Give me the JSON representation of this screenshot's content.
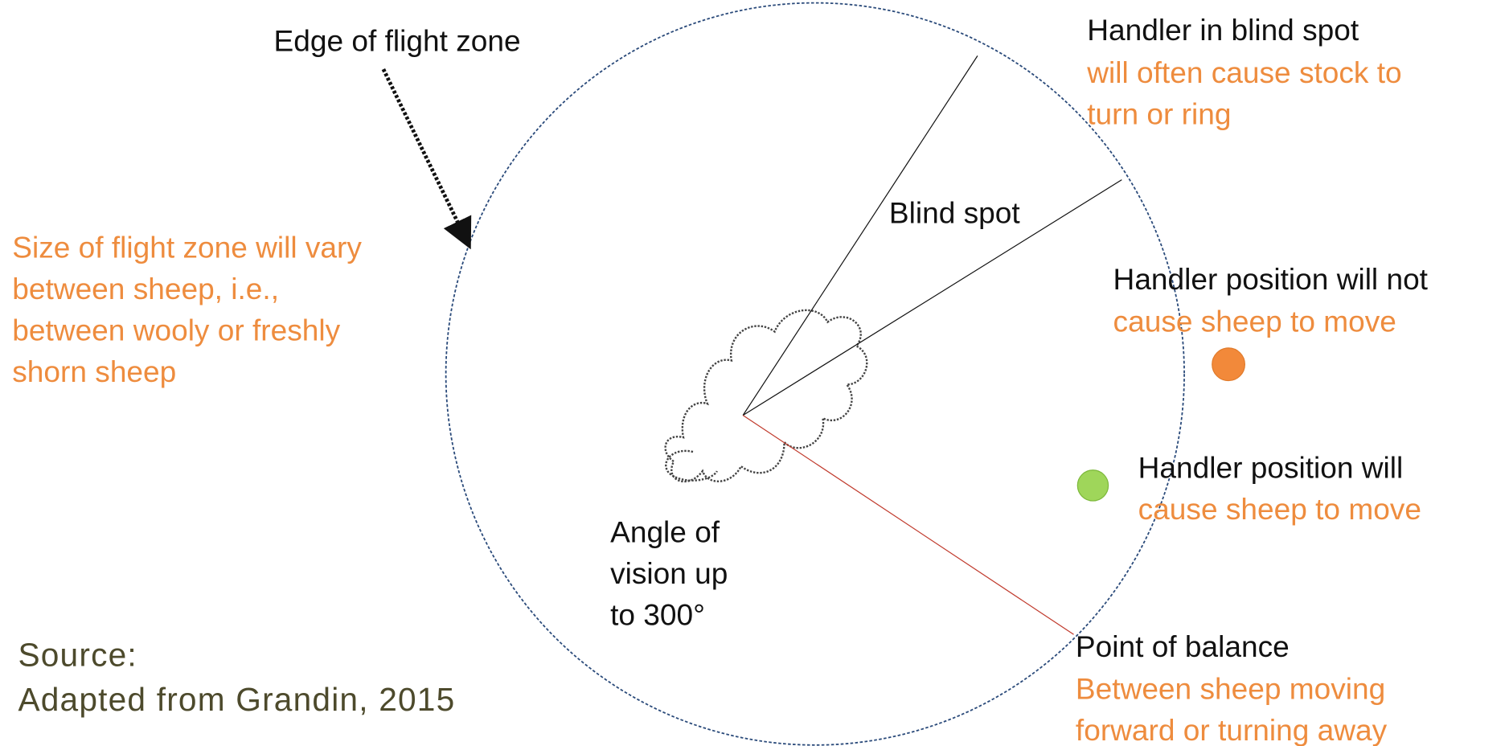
{
  "edge_label": "Edge of flight zone",
  "blind_spot_handler": {
    "title": "Handler in blind spot",
    "lines": [
      "will often cause stock to",
      "turn or ring"
    ]
  },
  "blind_spot_label": "Blind spot",
  "flight_zone_size": {
    "lines": [
      "Size of flight zone will vary",
      "between sheep, i.e.,",
      "between  wooly or freshly",
      "shorn sheep"
    ]
  },
  "handler_no_move": {
    "title": "Handler position will not",
    "lines": [
      "cause sheep to move"
    ]
  },
  "handler_move": {
    "title": "Handler position will",
    "lines": [
      "cause sheep to move"
    ]
  },
  "angle_label": {
    "lines": [
      "Angle of",
      "vision up",
      "to 300°"
    ]
  },
  "point_of_balance": {
    "title": "Point of balance",
    "lines": [
      "Between sheep moving",
      "forward or turning away"
    ]
  },
  "source": {
    "lines": [
      "Source:",
      "Adapted from Grandin, 2015"
    ]
  }
}
